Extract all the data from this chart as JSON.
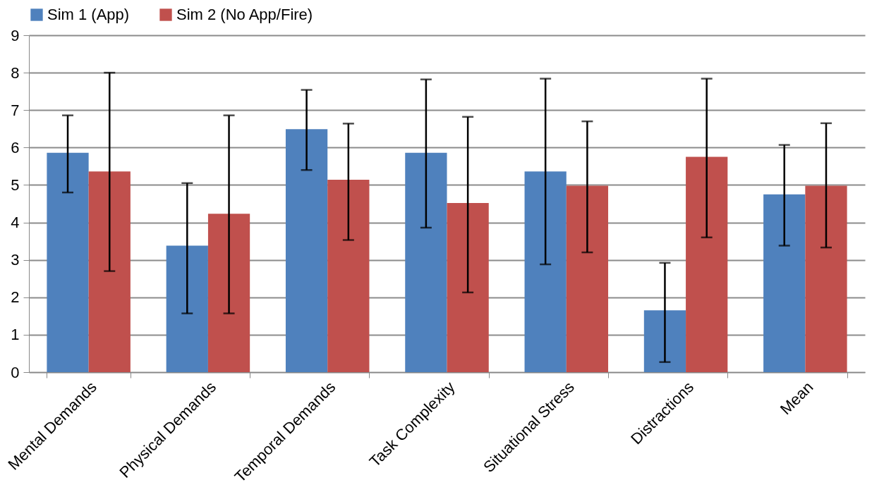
{
  "chart_data": {
    "type": "bar",
    "categories": [
      "Mental Demands",
      "Physical Demands",
      "Temporal Demands",
      "Task Complexity",
      "Situational Stress",
      "Distractions",
      "Mean"
    ],
    "series": [
      {
        "name": "Sim 1 (App)",
        "color": "#4f81bd",
        "values": [
          5.86,
          3.38,
          6.49,
          5.86,
          5.36,
          1.65,
          4.75
        ],
        "errors": [
          [
            4.8,
            6.86
          ],
          [
            1.57,
            5.05
          ],
          [
            5.4,
            7.54
          ],
          [
            3.86,
            7.82
          ],
          [
            2.88,
            7.84
          ],
          [
            0.27,
            2.92
          ],
          [
            3.38,
            6.07
          ]
        ]
      },
      {
        "name": "Sim 2 (No App/Fire)",
        "color": "#c0504d",
        "values": [
          5.36,
          4.23,
          5.14,
          4.52,
          4.98,
          5.75,
          4.98
        ],
        "errors": [
          [
            2.7,
            8.0
          ],
          [
            1.57,
            6.86
          ],
          [
            3.53,
            6.64
          ],
          [
            2.13,
            6.82
          ],
          [
            3.2,
            6.7
          ],
          [
            3.6,
            7.84
          ],
          [
            3.33,
            6.65
          ]
        ]
      }
    ],
    "ylim": [
      0,
      9
    ],
    "yticks": [
      0,
      1,
      2,
      3,
      4,
      5,
      6,
      7,
      8,
      9
    ],
    "grid": "y",
    "legend": "top"
  }
}
